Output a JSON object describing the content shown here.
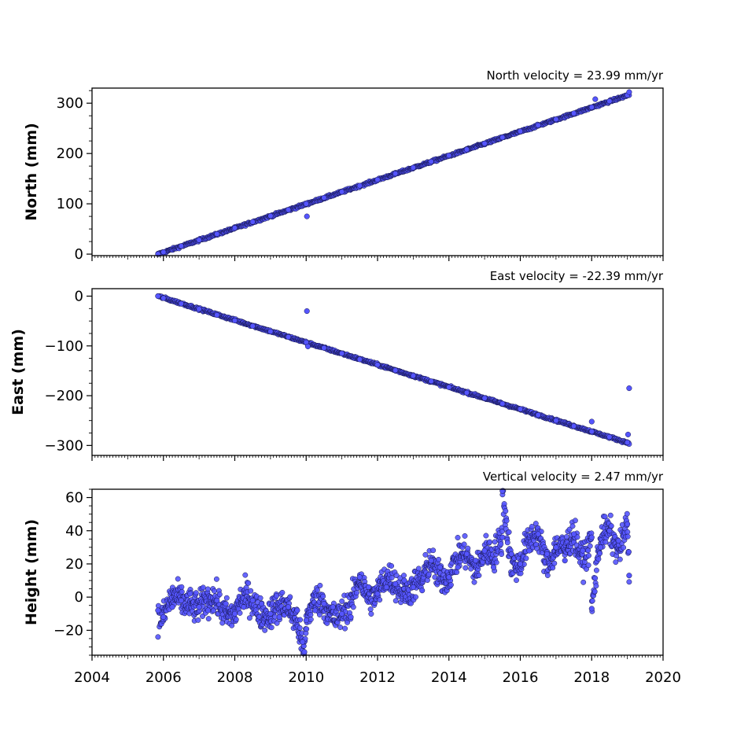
{
  "chart_data": [
    {
      "type": "scatter",
      "title": "North velocity = 23.99 mm/yr",
      "ylabel": "North (mm)",
      "xlim": [
        2004,
        2020
      ],
      "ylim": [
        -3,
        330
      ],
      "yticks": [
        0,
        100,
        200,
        300
      ],
      "ytick_labels": [
        "0",
        "100",
        "200",
        "300"
      ],
      "series": [
        {
          "color": "#5555ff",
          "x": [
            2005.85,
            2006.0,
            2006.5,
            2007.0,
            2007.5,
            2008.0,
            2008.5,
            2009.0,
            2009.5,
            2010.0,
            2010.02,
            2010.5,
            2011.0,
            2011.5,
            2012.0,
            2012.5,
            2013.0,
            2013.5,
            2014.0,
            2014.5,
            2015.0,
            2015.5,
            2016.0,
            2016.5,
            2017.0,
            2017.5,
            2018.0,
            2018.1,
            2018.5,
            2019.0,
            2019.05
          ],
          "y": [
            0,
            4,
            16,
            28,
            40,
            52,
            64,
            76,
            88,
            100,
            75,
            112,
            124,
            136,
            148,
            160,
            172,
            184,
            196,
            208,
            220,
            232,
            244,
            256,
            268,
            280,
            292,
            308,
            304,
            316,
            322
          ]
        }
      ]
    },
    {
      "type": "scatter",
      "title": "East velocity = -22.39 mm/yr",
      "ylabel": "East (mm)",
      "xlim": [
        2004,
        2020
      ],
      "ylim": [
        -320,
        15
      ],
      "yticks": [
        0,
        -100,
        -200,
        -300
      ],
      "ytick_labels": [
        "0",
        "−100",
        "−200",
        "−300"
      ],
      "series": [
        {
          "color": "#5555ff",
          "x": [
            2005.85,
            2006.0,
            2006.5,
            2007.0,
            2007.5,
            2008.0,
            2008.5,
            2009.0,
            2009.5,
            2010.0,
            2010.02,
            2010.05,
            2010.5,
            2011.0,
            2011.5,
            2012.0,
            2012.5,
            2013.0,
            2013.5,
            2014.0,
            2014.5,
            2015.0,
            2015.5,
            2016.0,
            2016.5,
            2017.0,
            2017.5,
            2018.0,
            2018.0,
            2018.5,
            2019.0,
            2019.02,
            2019.05
          ],
          "y": [
            0,
            -4,
            -15,
            -26,
            -38,
            -49,
            -60,
            -71,
            -82,
            -93,
            -30,
            -101,
            -104,
            -115,
            -127,
            -138,
            -149,
            -160,
            -171,
            -183,
            -194,
            -205,
            -216,
            -227,
            -239,
            -250,
            -261,
            -252,
            -272,
            -283,
            -294,
            -278,
            -185
          ]
        }
      ]
    },
    {
      "type": "scatter",
      "title": "Vertical velocity = 2.47 mm/yr",
      "ylabel": "Height (mm)",
      "xlabel": "",
      "xlim": [
        2004,
        2020
      ],
      "ylim": [
        -35,
        65
      ],
      "yticks": [
        -20,
        0,
        20,
        40,
        60
      ],
      "ytick_labels": [
        "−20",
        "0",
        "20",
        "40",
        "60"
      ],
      "xticks": [
        2004,
        2006,
        2008,
        2010,
        2012,
        2014,
        2016,
        2018,
        2020
      ],
      "xtick_labels": [
        "2004",
        "2006",
        "2008",
        "2010",
        "2012",
        "2014",
        "2016",
        "2018",
        "2020"
      ],
      "series": [
        {
          "color": "#5555ff",
          "x": [
            2005.85,
            2006.0,
            2006.25,
            2006.5,
            2006.75,
            2007.0,
            2007.25,
            2007.5,
            2007.75,
            2008.0,
            2008.25,
            2008.5,
            2008.75,
            2009.0,
            2009.25,
            2009.5,
            2009.75,
            2010.0,
            2010.25,
            2010.5,
            2010.75,
            2011.0,
            2011.25,
            2011.5,
            2011.75,
            2012.0,
            2012.25,
            2012.5,
            2012.75,
            2013.0,
            2013.25,
            2013.5,
            2013.75,
            2014.0,
            2014.25,
            2014.5,
            2014.75,
            2015.0,
            2015.25,
            2015.5,
            2015.75,
            2016.0,
            2016.25,
            2016.5,
            2016.75,
            2017.0,
            2017.25,
            2017.5,
            2017.75,
            2018.0,
            2018.25,
            2018.5,
            2018.75,
            2019.0,
            2019.05,
            2009.9,
            2009.95,
            2018.0,
            2015.5
          ],
          "y": [
            -8,
            -12,
            -6,
            -2,
            2,
            -6,
            -8,
            -2,
            -4,
            -10,
            -6,
            -2,
            -4,
            -10,
            -12,
            -6,
            -8,
            -14,
            -8,
            -4,
            -6,
            -10,
            -12,
            12,
            6,
            2,
            6,
            8,
            10,
            6,
            4,
            22,
            18,
            12,
            18,
            26,
            22,
            28,
            18,
            36,
            26,
            20,
            28,
            38,
            26,
            30,
            22,
            38,
            28,
            36,
            30,
            40,
            34,
            44,
            13,
            -27,
            -33,
            -7,
            64
          ]
        }
      ]
    }
  ]
}
